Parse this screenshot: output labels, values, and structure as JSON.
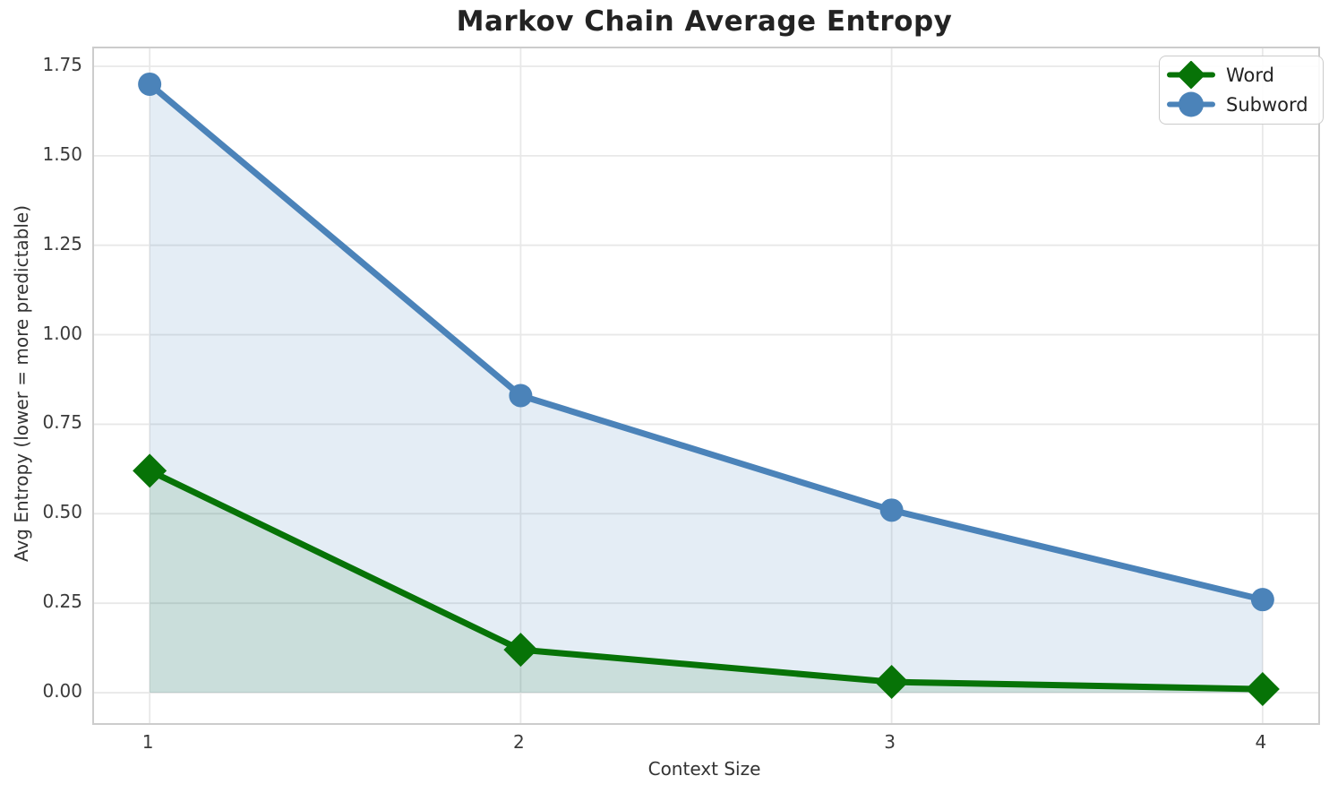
{
  "page": {
    "background": "#ffffff"
  },
  "chart_data": {
    "type": "line",
    "title": "Markov Chain Average Entropy",
    "xlabel": "Context Size",
    "ylabel": "Avg Entropy (lower = more predictable)",
    "x": [
      1,
      2,
      3,
      4
    ],
    "series": [
      {
        "name": "Word",
        "values": [
          0.62,
          0.12,
          0.03,
          0.01
        ],
        "color": "#077307",
        "fill_color": "rgba(7,115,7,0.12)",
        "marker": "diamond"
      },
      {
        "name": "Subword",
        "values": [
          1.7,
          0.83,
          0.51,
          0.26
        ],
        "color": "#4b83b9",
        "fill_color": "rgba(74,134,190,0.15)",
        "marker": "circle"
      }
    ],
    "xticks": [
      "1",
      "2",
      "3",
      "4"
    ],
    "yticks": [
      "0.00",
      "0.25",
      "0.50",
      "0.75",
      "1.00",
      "1.25",
      "1.50",
      "1.75"
    ],
    "xlim": [
      0.85,
      4.15
    ],
    "ylim": [
      -0.085,
      1.8
    ],
    "grid": true,
    "grid_color": "#e8e8e8",
    "spine_color": "#cccccc",
    "legend_position": "upper right",
    "fill_baseline": 0
  }
}
